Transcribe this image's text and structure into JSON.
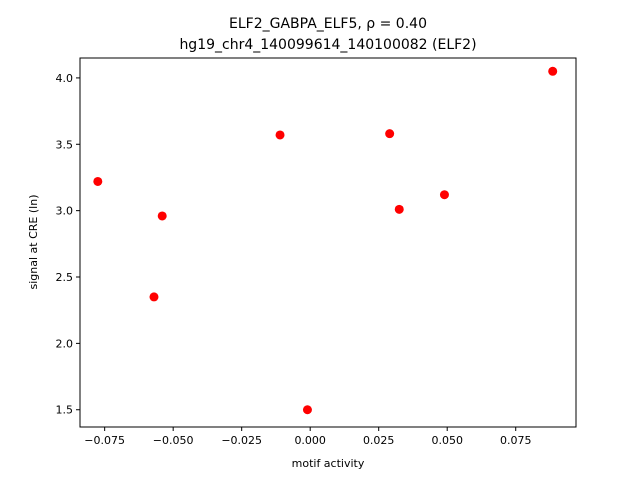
{
  "chart_data": {
    "type": "scatter",
    "title_line1": "ELF2_GABPA_ELF5, ρ = 0.40",
    "title_line2": "hg19_chr4_140099614_140100082 (ELF2)",
    "xlabel": "motif activity",
    "ylabel": "signal at CRE (ln)",
    "xlim": [
      -0.084,
      0.097
    ],
    "ylim": [
      1.37,
      4.15
    ],
    "xticks": [
      -0.075,
      -0.05,
      -0.025,
      0.0,
      0.025,
      0.05,
      0.075
    ],
    "xtick_labels": [
      "−0.075",
      "−0.050",
      "−0.025",
      "0.000",
      "0.025",
      "0.050",
      "0.075"
    ],
    "yticks": [
      1.5,
      2.0,
      2.5,
      3.0,
      3.5,
      4.0
    ],
    "ytick_labels": [
      "1.5",
      "2.0",
      "2.5",
      "3.0",
      "3.5",
      "4.0"
    ],
    "grid": false,
    "marker_color": "#ff0000",
    "points": [
      {
        "x": -0.0775,
        "y": 3.22
      },
      {
        "x": -0.057,
        "y": 2.35
      },
      {
        "x": -0.054,
        "y": 2.96
      },
      {
        "x": -0.011,
        "y": 3.57
      },
      {
        "x": -0.001,
        "y": 1.5
      },
      {
        "x": 0.029,
        "y": 3.58
      },
      {
        "x": 0.0325,
        "y": 3.01
      },
      {
        "x": 0.049,
        "y": 3.12
      },
      {
        "x": 0.0885,
        "y": 4.05
      }
    ]
  }
}
